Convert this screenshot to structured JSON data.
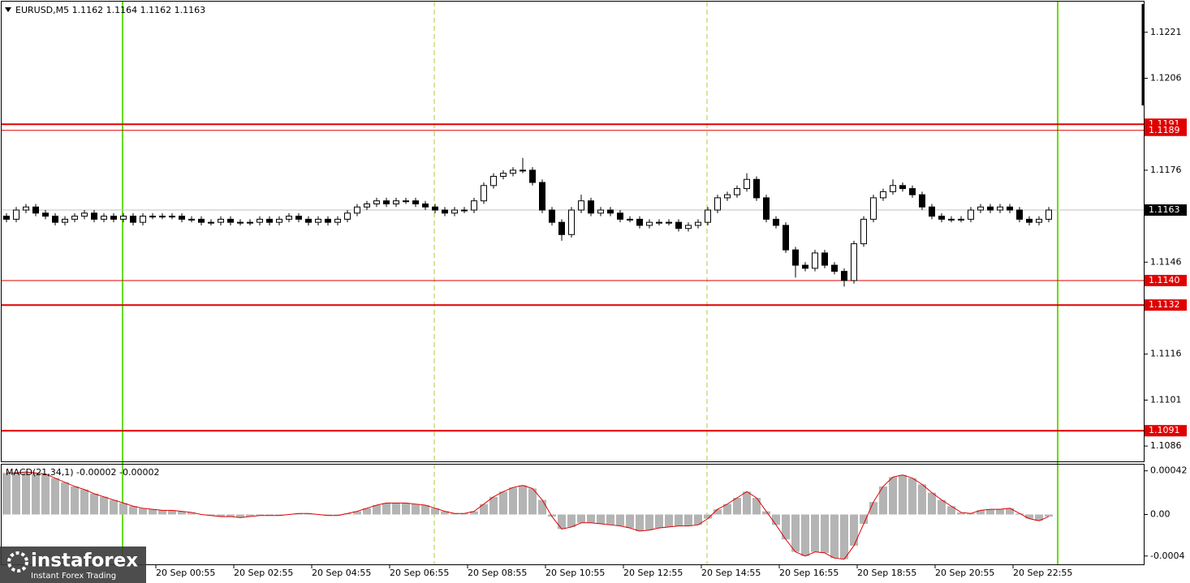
{
  "chart_data": [
    {
      "type": "candlestick",
      "title": "EURUSD,M5  1.1162 1.1164 1.1162 1.1163",
      "x": [
        1,
        4,
        7,
        10,
        13,
        16,
        19,
        22,
        25,
        28,
        31,
        34,
        37,
        40,
        43,
        46,
        49,
        52,
        55,
        58,
        61,
        64,
        67,
        70,
        73,
        76,
        79,
        82,
        85,
        88,
        91,
        94,
        97,
        100,
        103,
        106,
        109,
        112,
        115,
        118,
        121,
        124,
        127,
        130,
        133,
        136,
        139,
        142,
        145,
        148,
        151,
        154,
        157,
        160,
        163,
        166,
        169,
        172,
        175,
        178,
        181,
        184,
        187,
        190,
        193,
        196,
        199,
        202,
        205,
        208,
        211,
        214,
        217,
        220,
        223,
        226,
        229,
        232,
        235,
        238,
        241,
        244,
        247,
        250,
        253,
        256,
        259,
        262,
        265,
        268,
        271,
        274,
        277,
        280,
        283,
        286,
        289,
        292,
        295,
        298,
        301,
        304,
        307,
        310,
        313,
        316,
        319,
        322
      ],
      "open": [
        1.1161,
        1.116,
        1.1163,
        1.1164,
        1.1162,
        1.1161,
        1.1159,
        1.116,
        1.1161,
        1.1162,
        1.116,
        1.1161,
        1.116,
        1.1161,
        1.1159,
        1.1161,
        1.1161,
        1.1161,
        1.1161,
        1.116,
        1.116,
        1.1159,
        1.1159,
        1.116,
        1.1159,
        1.1159,
        1.1159,
        1.116,
        1.1159,
        1.116,
        1.1161,
        1.116,
        1.1159,
        1.116,
        1.1159,
        1.116,
        1.1162,
        1.1164,
        1.1165,
        1.1166,
        1.1165,
        1.1166,
        1.1166,
        1.1165,
        1.1164,
        1.1163,
        1.1162,
        1.1163,
        1.1163,
        1.1166,
        1.1171,
        1.1174,
        1.1175,
        1.1176,
        1.1176,
        1.1172,
        1.1163,
        1.1159,
        1.1155,
        1.1163,
        1.1166,
        1.1162,
        1.1163,
        1.1162,
        1.116,
        1.116,
        1.1158,
        1.1159,
        1.1159,
        1.1159,
        1.1157,
        1.1158,
        1.1159,
        1.1163,
        1.1167,
        1.1168,
        1.117,
        1.1173,
        1.1167,
        1.116,
        1.1158,
        1.115,
        1.1145,
        1.1144,
        1.1149,
        1.1145,
        1.1143,
        1.114,
        1.1152,
        1.116,
        1.1167,
        1.1169,
        1.1171,
        1.117,
        1.1168,
        1.1164,
        1.1161,
        1.116,
        1.116,
        1.116,
        1.1163,
        1.1164,
        1.1163,
        1.1164,
        1.1163,
        1.116,
        1.1159,
        1.116
      ],
      "high": [
        1.1162,
        1.1164,
        1.1165,
        1.1165,
        1.1163,
        1.1162,
        1.1161,
        1.1162,
        1.1163,
        1.1163,
        1.1162,
        1.1162,
        1.1162,
        1.1162,
        1.1162,
        1.1162,
        1.1162,
        1.1162,
        1.1162,
        1.1161,
        1.1161,
        1.116,
        1.1161,
        1.1161,
        1.116,
        1.116,
        1.1161,
        1.1161,
        1.1161,
        1.1162,
        1.1162,
        1.1161,
        1.1161,
        1.1161,
        1.1161,
        1.1163,
        1.1165,
        1.1166,
        1.1167,
        1.1167,
        1.1167,
        1.1167,
        1.1167,
        1.1166,
        1.1165,
        1.1164,
        1.1164,
        1.1164,
        1.1167,
        1.1172,
        1.1175,
        1.1176,
        1.1177,
        1.118,
        1.1177,
        1.1173,
        1.1164,
        1.116,
        1.1164,
        1.1168,
        1.1167,
        1.1164,
        1.1164,
        1.1163,
        1.1161,
        1.1161,
        1.116,
        1.116,
        1.116,
        1.116,
        1.1159,
        1.116,
        1.1164,
        1.1168,
        1.1169,
        1.1171,
        1.1175,
        1.1174,
        1.1168,
        1.1161,
        1.1159,
        1.1151,
        1.1146,
        1.115,
        1.115,
        1.1146,
        1.1144,
        1.1153,
        1.1161,
        1.1168,
        1.117,
        1.1173,
        1.1172,
        1.1171,
        1.1169,
        1.1165,
        1.1162,
        1.1161,
        1.1161,
        1.1164,
        1.1165,
        1.1165,
        1.1165,
        1.1165,
        1.1164,
        1.1161,
        1.1161,
        1.1164
      ],
      "low": [
        1.1159,
        1.1159,
        1.1162,
        1.1161,
        1.116,
        1.1158,
        1.1158,
        1.1159,
        1.116,
        1.1159,
        1.1159,
        1.1159,
        1.1159,
        1.1158,
        1.1158,
        1.116,
        1.116,
        1.116,
        1.1159,
        1.1159,
        1.1158,
        1.1158,
        1.1158,
        1.1158,
        1.1158,
        1.1158,
        1.1158,
        1.1158,
        1.1158,
        1.1159,
        1.1159,
        1.1158,
        1.1158,
        1.1158,
        1.1158,
        1.1159,
        1.1161,
        1.1163,
        1.1164,
        1.1164,
        1.1164,
        1.1165,
        1.1164,
        1.1163,
        1.1162,
        1.1161,
        1.1161,
        1.1162,
        1.1162,
        1.1165,
        1.117,
        1.1173,
        1.1174,
        1.1175,
        1.1171,
        1.1162,
        1.1158,
        1.1153,
        1.1154,
        1.1162,
        1.1161,
        1.1161,
        1.1161,
        1.1159,
        1.1159,
        1.1157,
        1.1157,
        1.1158,
        1.1158,
        1.1156,
        1.1156,
        1.1157,
        1.1158,
        1.1162,
        1.1166,
        1.1167,
        1.1169,
        1.1166,
        1.1159,
        1.1157,
        1.1149,
        1.1141,
        1.1143,
        1.1143,
        1.1144,
        1.1142,
        1.1138,
        1.1139,
        1.1151,
        1.1159,
        1.1166,
        1.1168,
        1.1169,
        1.1167,
        1.1163,
        1.116,
        1.1159,
        1.1159,
        1.1159,
        1.1159,
        1.1162,
        1.1162,
        1.1162,
        1.1162,
        1.1159,
        1.1158,
        1.1158,
        1.1159
      ],
      "close": [
        1.116,
        1.1163,
        1.1164,
        1.1162,
        1.1161,
        1.1159,
        1.116,
        1.1161,
        1.1162,
        1.116,
        1.1161,
        1.116,
        1.1161,
        1.1159,
        1.1161,
        1.1161,
        1.1161,
        1.1161,
        1.116,
        1.116,
        1.1159,
        1.1159,
        1.116,
        1.1159,
        1.1159,
        1.1159,
        1.116,
        1.1159,
        1.116,
        1.1161,
        1.116,
        1.1159,
        1.116,
        1.1159,
        1.116,
        1.1162,
        1.1164,
        1.1165,
        1.1166,
        1.1165,
        1.1166,
        1.1166,
        1.1165,
        1.1164,
        1.1163,
        1.1162,
        1.1163,
        1.1163,
        1.1166,
        1.1171,
        1.1174,
        1.1175,
        1.1176,
        1.1176,
        1.1172,
        1.1163,
        1.1159,
        1.1155,
        1.1163,
        1.1166,
        1.1162,
        1.1163,
        1.1162,
        1.116,
        1.116,
        1.1158,
        1.1159,
        1.1159,
        1.1159,
        1.1157,
        1.1158,
        1.1159,
        1.1163,
        1.1167,
        1.1168,
        1.117,
        1.1173,
        1.1167,
        1.116,
        1.1158,
        1.115,
        1.1145,
        1.1144,
        1.1149,
        1.1145,
        1.1143,
        1.114,
        1.1152,
        1.116,
        1.1167,
        1.1169,
        1.1171,
        1.117,
        1.1168,
        1.1164,
        1.1161,
        1.116,
        1.116,
        1.116,
        1.1163,
        1.1164,
        1.1163,
        1.1164,
        1.1163,
        1.116,
        1.1159,
        1.116,
        1.1163
      ],
      "xlim": [
        -1,
        351.5
      ],
      "ylim": [
        1.1081,
        1.1231
      ],
      "yticks": [
        1.1221,
        1.1206,
        1.1176,
        1.1146,
        1.1116,
        1.1101,
        1.1086
      ],
      "xticks": [
        {
          "value": 47,
          "label": "20 Sep 00:55"
        },
        {
          "value": 71,
          "label": "20 Sep 02:55"
        },
        {
          "value": 95,
          "label": "20 Sep 04:55"
        },
        {
          "value": 119,
          "label": "20 Sep 06:55"
        },
        {
          "value": 143,
          "label": "20 Sep 08:55"
        },
        {
          "value": 167,
          "label": "20 Sep 10:55"
        },
        {
          "value": 191,
          "label": "20 Sep 12:55"
        },
        {
          "value": 215,
          "label": "20 Sep 14:55"
        },
        {
          "value": 239,
          "label": "20 Sep 16:55"
        },
        {
          "value": 263,
          "label": "20 Sep 18:55"
        },
        {
          "value": 287,
          "label": "20 Sep 20:55"
        },
        {
          "value": 311,
          "label": "20 Sep 22:55"
        }
      ],
      "hlines": [
        {
          "value": 1.1191,
          "label": "1.1191",
          "width": 2
        },
        {
          "value": 1.1189,
          "label": "1.1189",
          "width": 1
        },
        {
          "value": 1.114,
          "label": "1.1140",
          "width": 1
        },
        {
          "value": 1.1132,
          "label": "1.1132",
          "width": 2
        },
        {
          "value": 1.1091,
          "label": "1.1091",
          "width": 2
        }
      ],
      "hline_color": "#e00000",
      "last": {
        "value": 1.1163,
        "label": "1.1163"
      },
      "vlines": [
        {
          "x": 36.75,
          "color": "#66dd00",
          "dashed": false
        },
        {
          "x": 132.75,
          "color": "#a8cf3a",
          "dashed": true
        },
        {
          "x": 216.75,
          "color": "#a8cf3a",
          "dashed": true
        },
        {
          "x": 324.75,
          "color": "#66dd00",
          "dashed": false
        }
      ],
      "up_color": "#ffffff",
      "down_color": "#000000"
    },
    {
      "type": "macd",
      "title": "MACD(21,34,1) -0.00002 -0.00002",
      "values": [
        0.0004,
        0.0004,
        0.00041,
        0.0004,
        0.00039,
        0.00035,
        0.00031,
        0.00027,
        0.00024,
        0.0002,
        0.00017,
        0.00014,
        0.00011,
        8e-05,
        6e-05,
        5e-05,
        4e-05,
        4e-05,
        3e-05,
        2e-05,
        0,
        -1e-05,
        -2e-05,
        -2e-05,
        -3e-05,
        -2e-05,
        -1e-05,
        -1e-05,
        -1e-05,
        0,
        1e-05,
        1e-05,
        0,
        -1e-05,
        -1e-05,
        1e-05,
        3e-05,
        6e-05,
        9e-05,
        0.00011,
        0.00011,
        0.00011,
        0.0001,
        9e-05,
        6e-05,
        3e-05,
        1e-05,
        1e-05,
        3e-05,
        0.0001,
        0.00017,
        0.00022,
        0.00026,
        0.00028,
        0.00025,
        0.00014,
        -2e-05,
        -0.00014,
        -0.00012,
        -8e-05,
        -8e-05,
        -9e-05,
        -0.0001,
        -0.00011,
        -0.00013,
        -0.00016,
        -0.00015,
        -0.00013,
        -0.00012,
        -0.00011,
        -0.00011,
        -0.0001,
        -4e-05,
        5e-05,
        0.0001,
        0.00016,
        0.00022,
        0.00016,
        3e-05,
        -0.0001,
        -0.00024,
        -0.00036,
        -0.0004,
        -0.00036,
        -0.00037,
        -0.00042,
        -0.00043,
        -0.0003,
        -9e-05,
        0.00012,
        0.00027,
        0.00036,
        0.00038,
        0.00035,
        0.00029,
        0.00021,
        0.00014,
        8e-05,
        2e-05,
        1e-05,
        4e-05,
        5e-05,
        5e-05,
        6e-05,
        1e-05,
        -4e-05,
        -6e-05,
        -2e-05
      ],
      "ylim": [
        -0.00048,
        0.00048
      ],
      "yticks": [
        0.00042,
        {
          "value": 0,
          "label": "0.00"
        },
        -0.0004
      ],
      "hist_color": "#b4b4b4",
      "line_color": "#e00000"
    }
  ],
  "logo": {
    "name": "instaforex",
    "tagline": "Instant Forex Trading"
  }
}
